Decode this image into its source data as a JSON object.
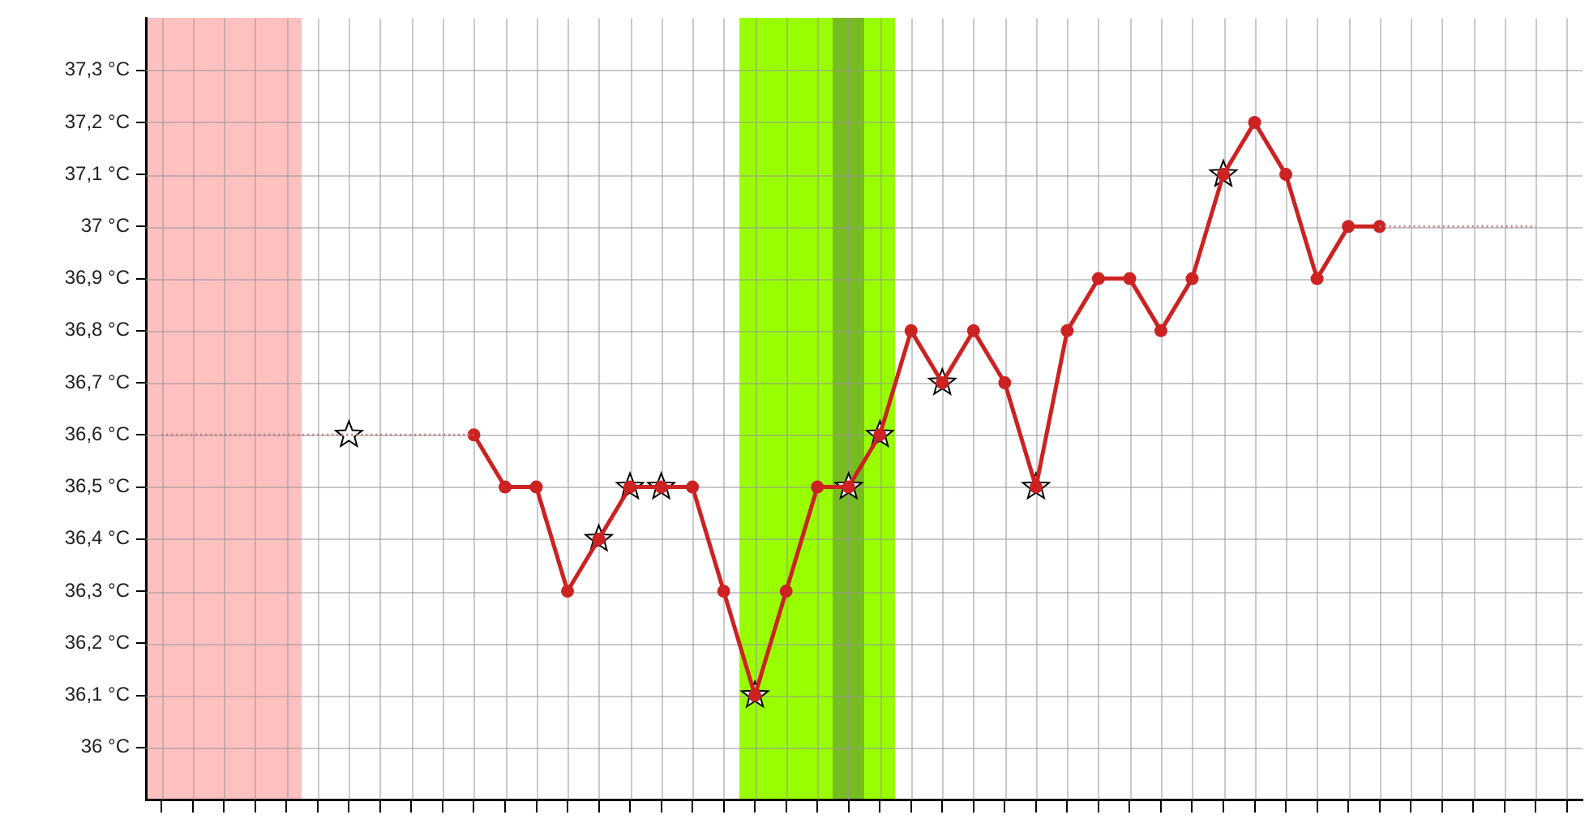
{
  "chart_data": {
    "type": "line",
    "categories": [
      null,
      null,
      null,
      null,
      null,
      null,
      null,
      null,
      null,
      null,
      null,
      null,
      null,
      null,
      null,
      null,
      null,
      null,
      null,
      null,
      null,
      null,
      null,
      null,
      null,
      null,
      null,
      null,
      null,
      null,
      null,
      null,
      null,
      null,
      null,
      null,
      null,
      null,
      null,
      null,
      null,
      null,
      null,
      null,
      null,
      null
    ],
    "ylim": [
      35.9,
      37.4
    ],
    "yticks": [
      {
        "value": 36,
        "label": "36 °C"
      },
      {
        "value": 36.1,
        "label": "36,1 °C"
      },
      {
        "value": 36.2,
        "label": "36,2 °C"
      },
      {
        "value": 36.3,
        "label": "36,3 °C"
      },
      {
        "value": 36.4,
        "label": "36,4 °C"
      },
      {
        "value": 36.5,
        "label": "36,5 °C"
      },
      {
        "value": 36.6,
        "label": "36,6 °C"
      },
      {
        "value": 36.7,
        "label": "36,7 °C"
      },
      {
        "value": 36.8,
        "label": "36,8 °C"
      },
      {
        "value": 36.9,
        "label": "36,9 °C"
      },
      {
        "value": 37,
        "label": "37 °C"
      },
      {
        "value": 37.1,
        "label": "37,1 °C"
      },
      {
        "value": 37.2,
        "label": "37,2 °C"
      },
      {
        "value": 37.3,
        "label": "37,3 °C"
      }
    ],
    "tick_labels": "y",
    "grid": true,
    "series": [
      {
        "color": "#c08080",
        "line_style": "dotted",
        "marker": "none",
        "values": [
          36.6,
          36.6,
          36.6,
          36.6,
          36.6,
          36.6,
          36.6,
          36.6,
          36.6,
          36.6,
          36.6,
          null,
          null,
          null,
          null,
          null,
          null,
          null,
          null,
          null,
          null,
          null,
          null,
          null,
          null,
          null,
          null,
          null,
          null,
          null,
          null,
          null,
          null,
          null,
          null,
          null,
          null,
          null,
          null,
          null,
          null,
          null,
          null,
          null,
          null,
          null
        ]
      },
      {
        "color": "#c08080",
        "line_style": "dotted",
        "marker": "none",
        "values": [
          null,
          null,
          null,
          null,
          null,
          null,
          null,
          null,
          null,
          null,
          null,
          null,
          null,
          null,
          null,
          null,
          null,
          null,
          null,
          null,
          null,
          null,
          null,
          null,
          null,
          null,
          null,
          null,
          null,
          null,
          null,
          null,
          null,
          null,
          null,
          null,
          null,
          null,
          null,
          37,
          37,
          37,
          37,
          37,
          37,
          null
        ]
      },
      {
        "color": "#cc2222",
        "line_style": "solid",
        "marker": "circle",
        "values": [
          null,
          null,
          null,
          null,
          null,
          null,
          null,
          null,
          null,
          null,
          36.6,
          36.5,
          36.5,
          36.3,
          36.4,
          36.5,
          36.5,
          36.5,
          36.3,
          36.1,
          36.3,
          36.5,
          36.5,
          36.6,
          36.8,
          36.7,
          36.8,
          36.7,
          36.5,
          36.8,
          36.9,
          36.9,
          36.8,
          36.9,
          37.1,
          37.2,
          37.1,
          36.9,
          37,
          37,
          null,
          null,
          null,
          null,
          null,
          null
        ]
      },
      {
        "type": "scatter",
        "color": "#ffffff",
        "marker": "star",
        "values": [
          null,
          null,
          null,
          null,
          null,
          null,
          36.6,
          null,
          null,
          null,
          null,
          null,
          null,
          null,
          36.4,
          36.5,
          36.5,
          null,
          null,
          36.1,
          null,
          null,
          36.5,
          36.6,
          null,
          36.7,
          null,
          null,
          36.5,
          null,
          null,
          null,
          null,
          null,
          37.1,
          null,
          null,
          null,
          null,
          null,
          null,
          null,
          null,
          null,
          null,
          null
        ]
      }
    ]
  }
}
